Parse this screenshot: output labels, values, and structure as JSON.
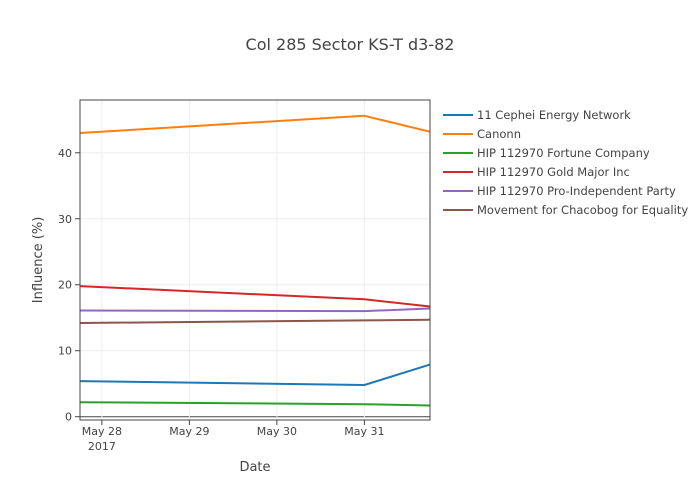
{
  "chart_data": {
    "type": "line",
    "title": "Col 285 Sector KS-T d3-82",
    "xlabel": "Date",
    "ylabel": "Influence (%)",
    "x": [
      "2017-05-27T18:00",
      "2017-05-31T00:00",
      "2017-05-31T18:00"
    ],
    "x_ticks": [
      {
        "date": "2017-05-28T00:00",
        "label": "May 28",
        "sublabel": "2017"
      },
      {
        "date": "2017-05-29T00:00",
        "label": "May 29",
        "sublabel": ""
      },
      {
        "date": "2017-05-30T00:00",
        "label": "May 30",
        "sublabel": ""
      },
      {
        "date": "2017-05-31T00:00",
        "label": "May 31",
        "sublabel": ""
      }
    ],
    "xlim": [
      "2017-05-27T18:00",
      "2017-05-31T18:00"
    ],
    "ylim": [
      -0.5,
      48
    ],
    "y_ticks": [
      0,
      10,
      20,
      30,
      40
    ],
    "grid": true,
    "legend_position": "right",
    "series": [
      {
        "name": "11 Cephei Energy Network",
        "color": "#1f77b4",
        "values": [
          5.4,
          4.8,
          7.9
        ]
      },
      {
        "name": "Canonn",
        "color": "#ff7f0e",
        "values": [
          43.0,
          45.6,
          43.2
        ]
      },
      {
        "name": "HIP 112970 Fortune Company",
        "color": "#2ca02c",
        "values": [
          2.2,
          1.9,
          1.7
        ]
      },
      {
        "name": "HIP 112970 Gold Major Inc",
        "color": "#d62728",
        "values": [
          19.8,
          17.8,
          16.7
        ]
      },
      {
        "name": "HIP 112970 Pro-Independent Party",
        "color": "#9467bd",
        "values": [
          16.1,
          16.0,
          16.4
        ]
      },
      {
        "name": "Movement for Chacobog for Equality",
        "color": "#8c564b",
        "values": [
          14.2,
          14.6,
          14.7
        ]
      }
    ]
  }
}
